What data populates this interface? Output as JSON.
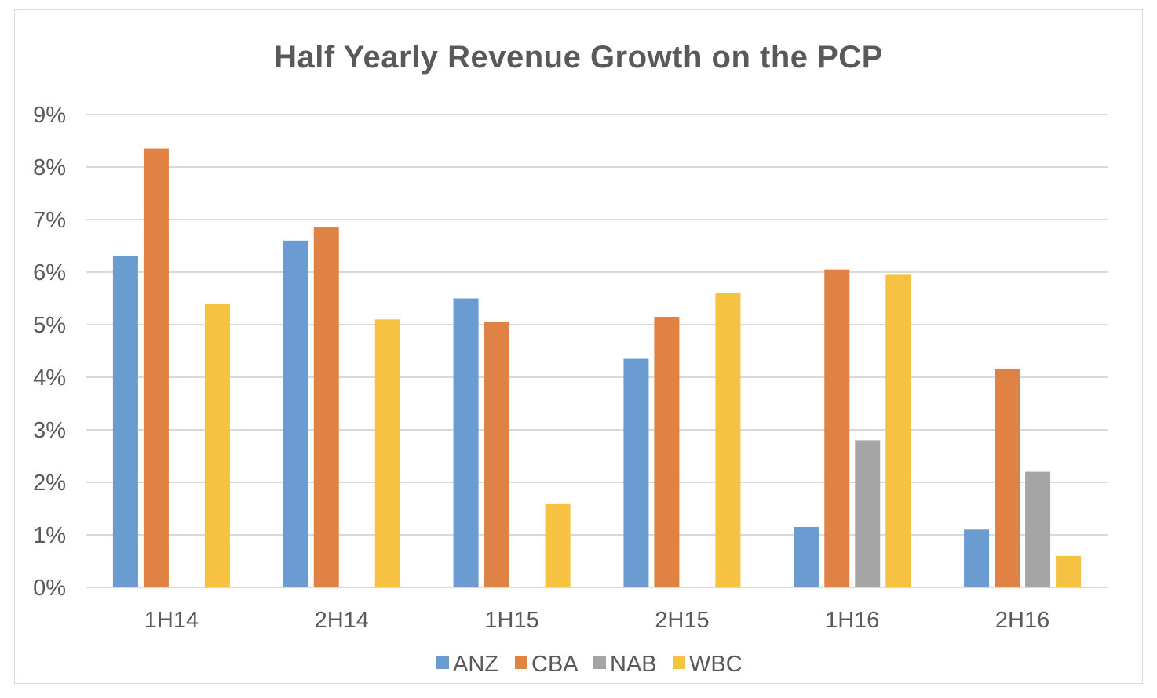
{
  "chart_data": {
    "type": "bar",
    "title": "Half Yearly Revenue Growth on the PCP",
    "xlabel": "",
    "ylabel": "",
    "categories": [
      "1H14",
      "2H14",
      "1H15",
      "2H15",
      "1H16",
      "2H16"
    ],
    "series": [
      {
        "name": "ANZ",
        "color": "#6A9BD1",
        "values": [
          6.3,
          6.6,
          5.5,
          4.35,
          1.15,
          1.1
        ]
      },
      {
        "name": "CBA",
        "color": "#E08244",
        "values": [
          8.35,
          6.85,
          5.05,
          5.15,
          6.05,
          4.15
        ]
      },
      {
        "name": "NAB",
        "color": "#A5A5A5",
        "values": [
          null,
          null,
          null,
          null,
          2.8,
          2.2
        ]
      },
      {
        "name": "WBC",
        "color": "#F5C242",
        "values": [
          5.4,
          5.1,
          1.6,
          5.6,
          5.95,
          0.6
        ]
      }
    ],
    "ylim": [
      0,
      9
    ],
    "yticks": [
      "0%",
      "1%",
      "2%",
      "3%",
      "4%",
      "5%",
      "6%",
      "7%",
      "8%",
      "9%"
    ],
    "grid": true,
    "legend": "bottom-center"
  },
  "colors": {
    "grid": "#d9d9d9",
    "text": "#595959"
  }
}
